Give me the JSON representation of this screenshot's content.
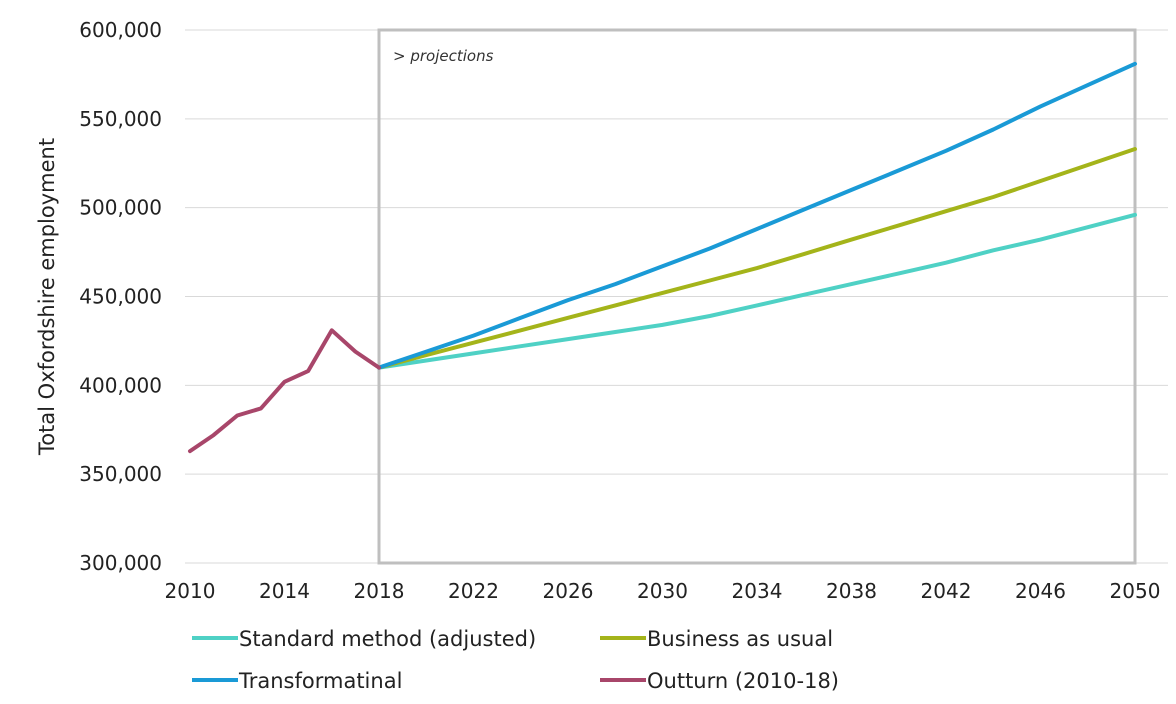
{
  "chart_data": {
    "type": "line",
    "ylabel": "Total Oxfordshire employment",
    "xlabel": "",
    "xlim": [
      2010,
      2050
    ],
    "ylim": [
      300000,
      600000
    ],
    "x_ticks": [
      2010,
      2014,
      2018,
      2022,
      2026,
      2030,
      2034,
      2038,
      2042,
      2046,
      2050
    ],
    "y_ticks": [
      300000,
      350000,
      400000,
      450000,
      500000,
      550000,
      600000
    ],
    "y_tick_labels": [
      "300,000",
      "350,000",
      "400,000",
      "450,000",
      "500,000",
      "550,000",
      "600,000"
    ],
    "grid": "horizontal",
    "legend_position": "bottom",
    "annotation": {
      "text": "> projections",
      "region_start": 2018,
      "region_end": 2050
    },
    "series": [
      {
        "name": "Standard method (adjusted)",
        "color": "#4fd1c5",
        "x": [
          2018,
          2020,
          2022,
          2024,
          2026,
          2028,
          2030,
          2032,
          2034,
          2036,
          2038,
          2040,
          2042,
          2044,
          2046,
          2048,
          2050
        ],
        "y": [
          410000,
          414000,
          418000,
          422000,
          426000,
          430000,
          434000,
          439000,
          445000,
          451000,
          457000,
          463000,
          469000,
          476000,
          482000,
          489000,
          496000
        ]
      },
      {
        "name": "Business as usual",
        "color": "#a4b41a",
        "x": [
          2018,
          2020,
          2022,
          2024,
          2026,
          2028,
          2030,
          2032,
          2034,
          2036,
          2038,
          2040,
          2042,
          2044,
          2046,
          2048,
          2050
        ],
        "y": [
          410000,
          417000,
          424000,
          431000,
          438000,
          445000,
          452000,
          459000,
          466000,
          474000,
          482000,
          490000,
          498000,
          506000,
          515000,
          524000,
          533000
        ]
      },
      {
        "name": "Transformatinal",
        "color": "#1a9ad6",
        "x": [
          2018,
          2020,
          2022,
          2024,
          2026,
          2028,
          2030,
          2032,
          2034,
          2036,
          2038,
          2040,
          2042,
          2044,
          2046,
          2048,
          2050
        ],
        "y": [
          410000,
          419000,
          428000,
          438000,
          448000,
          457000,
          467000,
          477000,
          488000,
          499000,
          510000,
          521000,
          532000,
          544000,
          557000,
          569000,
          581000
        ]
      },
      {
        "name": "Outturn (2010-18)",
        "color": "#a8466a",
        "x": [
          2010,
          2011,
          2012,
          2013,
          2014,
          2015,
          2016,
          2017,
          2018
        ],
        "y": [
          363000,
          372000,
          383000,
          387000,
          402000,
          408000,
          431000,
          419000,
          410000
        ]
      }
    ]
  }
}
